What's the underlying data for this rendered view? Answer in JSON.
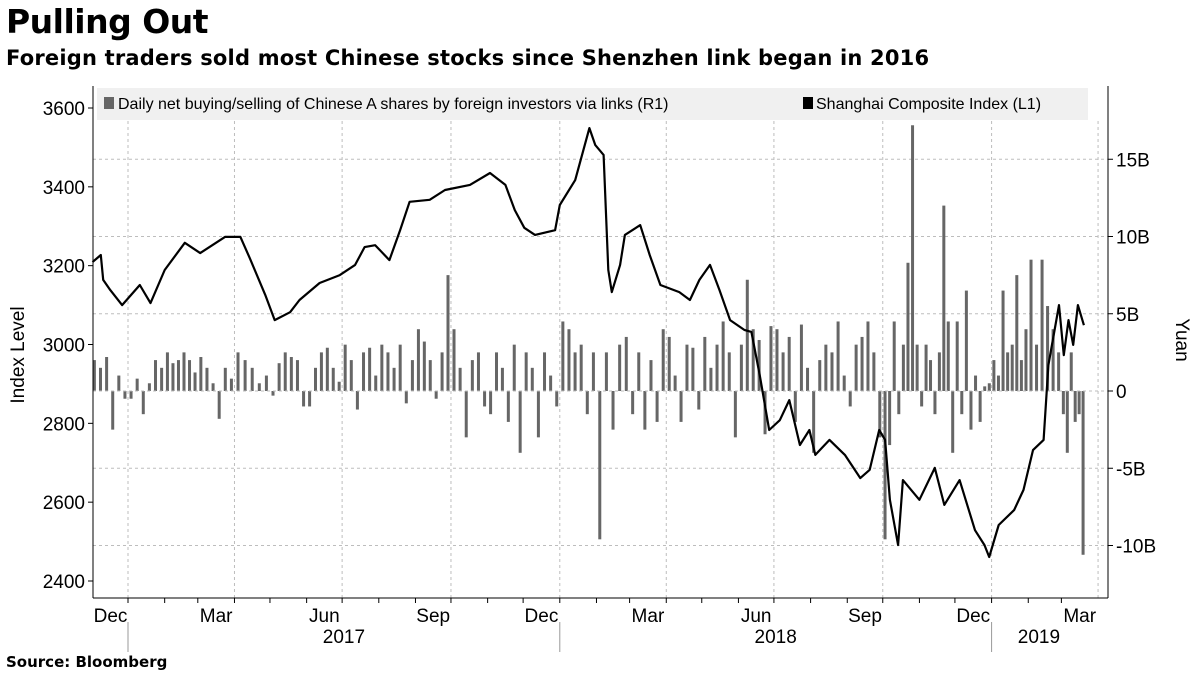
{
  "title": "Pulling Out",
  "subtitle": "Foreign traders sold most Chinese stocks since Shenzhen link began in 2016",
  "source": "Source: Bloomberg",
  "colors": {
    "bars": "#666666",
    "line": "#000000",
    "legend_bg": "#f0f0f0",
    "grid": "#bdbdbd"
  },
  "chart_data": {
    "type": "bar+line",
    "title": "Pulling Out",
    "legend_placement": "top",
    "legend": [
      {
        "label": "Daily net buying/selling of Chinese A shares by foreign investors via links (R1)",
        "color": "#666666"
      },
      {
        "label": "Shanghai Composite Index (L1)",
        "color": "#000000"
      }
    ],
    "left_axis": {
      "label": "Index Level",
      "ylim": [
        2360,
        3650
      ],
      "ticks": [
        2400,
        2600,
        2800,
        3000,
        3200,
        3400,
        3600
      ],
      "tick_labels": [
        "2400",
        "2600",
        "2800",
        "3000",
        "3200",
        "3400",
        "3600"
      ]
    },
    "right_axis": {
      "label": "Yuan",
      "ylim": [
        -13.5,
        19.5
      ],
      "ticks": [
        -10,
        -5,
        0,
        5,
        10,
        15
      ],
      "tick_labels": [
        "-10B",
        "-5B",
        "0",
        "5B",
        "10B",
        "15B"
      ]
    },
    "x_axis": {
      "range": [
        "2016-12-01",
        "2019-03-22"
      ],
      "month_labels": [
        {
          "label": "Dec",
          "month": "2016-12"
        },
        {
          "label": "Mar",
          "month": "2017-03"
        },
        {
          "label": "Jun",
          "month": "2017-06"
        },
        {
          "label": "Sep",
          "month": "2017-09"
        },
        {
          "label": "Dec",
          "month": "2017-12"
        },
        {
          "label": "Mar",
          "month": "2018-03"
        },
        {
          "label": "Jun",
          "month": "2018-06"
        },
        {
          "label": "Sep",
          "month": "2018-09"
        },
        {
          "label": "Dec",
          "month": "2018-12"
        },
        {
          "label": "Mar",
          "month": "2019-03"
        }
      ],
      "year_labels": [
        {
          "label": "2017",
          "start": "2017-01-01",
          "end": "2018-01-01"
        },
        {
          "label": "2018",
          "start": "2018-01-01",
          "end": "2019-01-01"
        },
        {
          "label": "2019",
          "start": "2019-01-01",
          "end": "2019-03-22"
        }
      ]
    },
    "grid": true,
    "series": [
      {
        "name": "Shanghai Composite Index (L1)",
        "type": "line",
        "axis": "left",
        "points": [
          [
            "2016-12-02",
            3209
          ],
          [
            "2016-12-09",
            3227
          ],
          [
            "2016-12-11",
            3164
          ],
          [
            "2016-12-17",
            3138
          ],
          [
            "2016-12-27",
            3100
          ],
          [
            "2017-01-11",
            3151
          ],
          [
            "2017-01-20",
            3105
          ],
          [
            "2017-02-01",
            3189
          ],
          [
            "2017-02-18",
            3258
          ],
          [
            "2017-03-03",
            3232
          ],
          [
            "2017-03-24",
            3273
          ],
          [
            "2017-04-06",
            3273
          ],
          [
            "2017-04-14",
            3219
          ],
          [
            "2017-04-27",
            3126
          ],
          [
            "2017-05-05",
            3062
          ],
          [
            "2017-05-18",
            3082
          ],
          [
            "2017-05-26",
            3113
          ],
          [
            "2017-06-12",
            3156
          ],
          [
            "2017-06-29",
            3176
          ],
          [
            "2017-07-12",
            3202
          ],
          [
            "2017-07-20",
            3247
          ],
          [
            "2017-07-29",
            3252
          ],
          [
            "2017-08-10",
            3214
          ],
          [
            "2017-08-19",
            3290
          ],
          [
            "2017-08-27",
            3362
          ],
          [
            "2017-09-13",
            3367
          ],
          [
            "2017-09-26",
            3392
          ],
          [
            "2017-10-17",
            3405
          ],
          [
            "2017-11-03",
            3435
          ],
          [
            "2017-11-16",
            3405
          ],
          [
            "2017-11-24",
            3341
          ],
          [
            "2017-12-02",
            3296
          ],
          [
            "2017-12-11",
            3278
          ],
          [
            "2017-12-28",
            3290
          ],
          [
            "2018-01-01",
            3354
          ],
          [
            "2018-01-14",
            3417
          ],
          [
            "2018-01-26",
            3549
          ],
          [
            "2018-01-31",
            3506
          ],
          [
            "2018-02-07",
            3481
          ],
          [
            "2018-02-11",
            3189
          ],
          [
            "2018-02-14",
            3133
          ],
          [
            "2018-02-21",
            3202
          ],
          [
            "2018-02-25",
            3278
          ],
          [
            "2018-03-10",
            3303
          ],
          [
            "2018-03-18",
            3227
          ],
          [
            "2018-03-27",
            3151
          ],
          [
            "2018-04-12",
            3133
          ],
          [
            "2018-04-21",
            3113
          ],
          [
            "2018-04-29",
            3164
          ],
          [
            "2018-05-08",
            3202
          ],
          [
            "2018-05-16",
            3138
          ],
          [
            "2018-05-25",
            3062
          ],
          [
            "2018-06-06",
            3037
          ],
          [
            "2018-06-12",
            3032
          ],
          [
            "2018-06-19",
            2923
          ],
          [
            "2018-06-27",
            2783
          ],
          [
            "2018-07-06",
            2808
          ],
          [
            "2018-07-14",
            2859
          ],
          [
            "2018-07-23",
            2745
          ],
          [
            "2018-07-31",
            2783
          ],
          [
            "2018-08-05",
            2720
          ],
          [
            "2018-08-17",
            2758
          ],
          [
            "2018-08-30",
            2720
          ],
          [
            "2018-09-12",
            2661
          ],
          [
            "2018-09-20",
            2682
          ],
          [
            "2018-09-28",
            2783
          ],
          [
            "2018-10-03",
            2758
          ],
          [
            "2018-10-07",
            2606
          ],
          [
            "2018-10-14",
            2491
          ],
          [
            "2018-10-18",
            2656
          ],
          [
            "2018-11-01",
            2606
          ],
          [
            "2018-11-14",
            2687
          ],
          [
            "2018-11-22",
            2593
          ],
          [
            "2018-12-05",
            2656
          ],
          [
            "2018-12-18",
            2529
          ],
          [
            "2018-12-26",
            2491
          ],
          [
            "2018-12-30",
            2461
          ],
          [
            "2019-01-07",
            2542
          ],
          [
            "2019-01-20",
            2580
          ],
          [
            "2019-01-28",
            2631
          ],
          [
            "2019-02-05",
            2732
          ],
          [
            "2019-02-14",
            2758
          ],
          [
            "2019-02-18",
            2948
          ],
          [
            "2019-02-27",
            3100
          ],
          [
            "2019-03-03",
            2973
          ],
          [
            "2019-03-07",
            3062
          ],
          [
            "2019-03-11",
            2999
          ],
          [
            "2019-03-15",
            3100
          ],
          [
            "2019-03-20",
            3049
          ]
        ]
      },
      {
        "name": "Daily net buying/selling of Chinese A shares by foreign investors via links (R1)",
        "type": "bar",
        "axis": "right",
        "unit": "billion yuan",
        "by_month": {
          "2016-12": [
            2.0,
            1.5,
            2.2,
            -2.5,
            1.0,
            -0.5
          ],
          "2017-01": [
            -0.5,
            0.8,
            -1.5,
            0.5,
            2.0,
            1.5
          ],
          "2017-02": [
            2.5,
            1.8,
            2.0,
            2.5,
            2.0,
            1.2
          ],
          "2017-03": [
            2.2,
            1.5,
            0.5,
            -1.8,
            1.5,
            0.8
          ],
          "2017-04": [
            2.5,
            2.0,
            1.5,
            0.5,
            1.0
          ],
          "2017-05": [
            -0.3,
            1.8,
            2.5,
            2.2,
            2.0,
            -1.0
          ],
          "2017-06": [
            -1.0,
            1.5,
            2.5,
            2.8,
            1.5,
            0.6
          ],
          "2017-07": [
            3.0,
            2.0,
            -1.2,
            2.5,
            2.8,
            1.0
          ],
          "2017-08": [
            3.0,
            2.5,
            1.5,
            3.0,
            -0.8,
            2.0
          ],
          "2017-09": [
            4.0,
            3.2,
            2.0,
            -0.5,
            2.5,
            7.5
          ],
          "2017-10": [
            4.0,
            1.5,
            -3.0,
            2.0,
            2.5,
            -1.0
          ],
          "2017-11": [
            -1.5,
            2.5,
            1.5,
            -2.0,
            3.0,
            -4.0
          ],
          "2017-12": [
            2.5,
            1.5,
            -3.0,
            2.5,
            1.0,
            -1.0
          ],
          "2018-01": [
            4.5,
            4.0,
            2.5,
            3.0,
            -1.5,
            2.5
          ],
          "2018-02": [
            -9.6,
            2.5,
            -2.5,
            3.0,
            3.5
          ],
          "2018-03": [
            -1.5,
            2.5,
            -2.5,
            2.0,
            -2.0,
            4.0
          ],
          "2018-04": [
            3.5,
            1.0,
            -2.0,
            3.0,
            2.8,
            -1.2
          ],
          "2018-05": [
            3.5,
            1.5,
            3.0,
            4.5,
            2.5,
            -3.0
          ],
          "2018-06": [
            3.0,
            7.2,
            4.0,
            3.3,
            -2.8,
            4.2
          ],
          "2018-07": [
            4.0,
            2.5,
            3.5,
            -2.0,
            4.3,
            1.5
          ],
          "2018-08": [
            -4.0,
            2.0,
            3.0,
            2.5,
            4.5,
            1.0
          ],
          "2018-09": [
            -1.0,
            3.0,
            3.5,
            4.5,
            2.5,
            -3.0
          ],
          "2018-10": [
            -9.6,
            -3.5,
            4.5,
            -1.5,
            3.0,
            8.3,
            17.2,
            3.0
          ],
          "2018-11": [
            -1.0,
            3.0,
            2.0,
            -1.5,
            2.5,
            12.0,
            4.5,
            -4.0
          ],
          "2018-12": [
            4.5,
            -1.5,
            6.5,
            -2.5,
            1.0,
            -2.0,
            0.3,
            0.5
          ],
          "2019-01": [
            2.0,
            1.0,
            6.5,
            2.5,
            3.0,
            7.5,
            2.0,
            4.0
          ],
          "2019-02": [
            8.5,
            3.0,
            8.5,
            5.5,
            4.0,
            2.5
          ],
          "2019-03": [
            -1.5,
            -4.0,
            2.5,
            -2.0,
            -1.5,
            -10.6
          ]
        }
      }
    ]
  }
}
